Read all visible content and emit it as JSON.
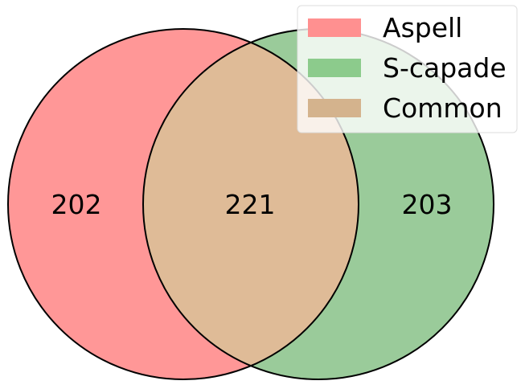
{
  "venn": {
    "sets": [
      {
        "name": "Aspell",
        "only_count": "202",
        "color": "#ff7f7f"
      },
      {
        "name": "S-capade",
        "only_count": "203",
        "color": "#7fbf7f"
      }
    ],
    "intersection": {
      "name": "Common",
      "count": "221",
      "color": "#dfbb97"
    },
    "legend": {
      "position": "top-right",
      "entries": [
        {
          "label": "Aspell",
          "color": "#ff9090"
        },
        {
          "label": "S-capade",
          "color": "#8ccb8c"
        },
        {
          "label": "Common",
          "color": "#d4b38d"
        }
      ]
    }
  }
}
